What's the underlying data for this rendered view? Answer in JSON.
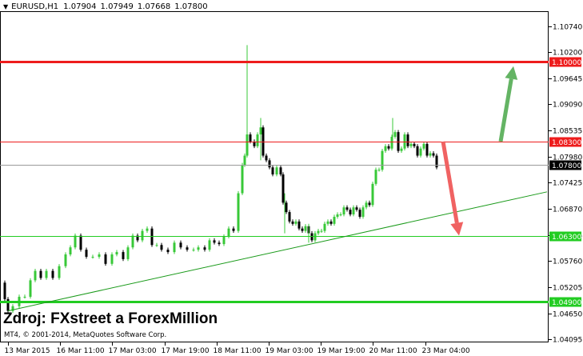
{
  "header": {
    "menu_arrow": "▼",
    "symbol": "EURUSD,H1",
    "quote": [
      "1.07904",
      "1.07949",
      "1.07668",
      "1.07800"
    ]
  },
  "watermark": {
    "source_text": "Zdroj: FXstreet a ForexMillion",
    "copyright": "MT4, © 2001-2014, MetaQuotes Software Corp."
  },
  "colors": {
    "background": "#ffffff",
    "grid": "#c8c8c8",
    "bull_candle": "#38c838",
    "bear_candle": "#000000",
    "red_line": "#ee1c1c",
    "green_line": "#22cc22",
    "trend_line": "#1a9a1a",
    "up_arrow": "#64b464",
    "down_arrow": "#f06262"
  },
  "chart_data": {
    "type": "candlestick",
    "ylim": [
      1.0403,
      1.1107
    ],
    "y_ticks": [
      "1.10740",
      "1.10200",
      "1.09645",
      "1.09090",
      "1.08535",
      "1.07980",
      "1.07425",
      "1.06870",
      "1.06315",
      "1.05760",
      "1.05205",
      "1.04650",
      "1.04095"
    ],
    "x_ticks": [
      "13 Mar 2015",
      "16 Mar 11:00",
      "17 Mar 03:00",
      "17 Mar 19:00",
      "18 Mar 11:00",
      "19 Mar 03:00",
      "19 Mar 19:00",
      "20 Mar 11:00",
      "23 Mar 04:00"
    ],
    "price_path": [
      [
        0,
        1.053,
        1.0495
      ],
      [
        4,
        1.047,
        1.045
      ],
      [
        10,
        1.048,
        1.047
      ],
      [
        18,
        1.0512,
        1.05
      ],
      [
        25,
        1.05,
        1.0485
      ],
      [
        32,
        1.0535,
        1.052
      ],
      [
        38,
        1.0575,
        1.0555
      ],
      [
        45,
        1.054,
        1.053
      ],
      [
        52,
        1.0555,
        1.0545
      ],
      [
        60,
        1.055,
        1.054
      ],
      [
        68,
        1.0565,
        1.0555
      ],
      [
        76,
        1.059,
        1.0575
      ],
      [
        82,
        1.0625,
        1.0605
      ],
      [
        88,
        1.063,
        1.061
      ],
      [
        95,
        1.06,
        1.059
      ],
      [
        102,
        1.0595,
        1.0585
      ],
      [
        110,
        1.0585,
        1.0578
      ],
      [
        118,
        1.059,
        1.058
      ],
      [
        126,
        1.0575,
        1.057
      ],
      [
        134,
        1.059,
        1.0575
      ],
      [
        140,
        1.0595,
        1.0585
      ],
      [
        148,
        1.0585,
        1.058
      ],
      [
        154,
        1.0605,
        1.0585
      ],
      [
        160,
        1.063,
        1.0615
      ],
      [
        166,
        1.0635,
        1.062
      ],
      [
        172,
        1.064,
        1.0625
      ],
      [
        178,
        1.0645,
        1.063
      ],
      [
        184,
        1.062,
        1.061
      ],
      [
        190,
        1.061,
        1.0605
      ],
      [
        196,
        1.06,
        1.06
      ],
      [
        204,
        1.06,
        1.0595
      ],
      [
        212,
        1.0615,
        1.06
      ],
      [
        220,
        1.0605,
        1.06
      ],
      [
        228,
        1.061,
        1.06
      ],
      [
        236,
        1.06,
        1.0595
      ],
      [
        242,
        1.0605,
        1.059
      ],
      [
        250,
        1.061,
        1.06
      ],
      [
        256,
        1.062,
        1.061
      ],
      [
        262,
        1.0615,
        1.0605
      ],
      [
        268,
        1.0622,
        1.0612
      ],
      [
        274,
        1.0628,
        1.0618
      ],
      [
        280,
        1.0645,
        1.0625
      ],
      [
        286,
        1.0665,
        1.064
      ],
      [
        292,
        1.072,
        1.068
      ],
      [
        297,
        1.078,
        1.074
      ],
      [
        300,
        1.082,
        1.08
      ],
      [
        303,
        1.0845,
        1.081
      ],
      [
        307,
        1.083,
        1.081
      ],
      [
        312,
        1.083,
        1.082
      ],
      [
        316,
        1.0845,
        1.0815
      ],
      [
        320,
        1.086,
        1.084
      ],
      [
        323,
        1.081,
        1.08
      ],
      [
        327,
        1.079,
        1.078
      ],
      [
        331,
        1.0775,
        1.076
      ],
      [
        335,
        1.077,
        1.076
      ],
      [
        340,
        1.0775,
        1.0765
      ],
      [
        345,
        1.076,
        1.074
      ],
      [
        348,
        1.0725,
        1.07
      ],
      [
        352,
        1.068,
        1.066
      ],
      [
        356,
        1.066,
        1.065
      ],
      [
        360,
        1.0665,
        1.0655
      ],
      [
        364,
        1.066,
        1.065
      ],
      [
        368,
        1.0645,
        1.064
      ],
      [
        372,
        1.0645,
        1.064
      ],
      [
        376,
        1.065,
        1.064
      ],
      [
        380,
        1.0635,
        1.0625
      ],
      [
        384,
        1.0625,
        1.062
      ],
      [
        388,
        1.0635,
        1.0625
      ],
      [
        392,
        1.064,
        1.0635
      ],
      [
        396,
        1.065,
        1.064
      ],
      [
        400,
        1.0655,
        1.0645
      ],
      [
        404,
        1.066,
        1.065
      ],
      [
        408,
        1.0665,
        1.0655
      ],
      [
        412,
        1.067,
        1.066
      ],
      [
        416,
        1.0675,
        1.0665
      ],
      [
        420,
        1.0685,
        1.0675
      ],
      [
        424,
        1.069,
        1.068
      ],
      [
        428,
        1.0685,
        1.0678
      ],
      [
        432,
        1.0685,
        1.0675
      ],
      [
        436,
        1.069,
        1.068
      ],
      [
        440,
        1.0685,
        1.0675
      ],
      [
        444,
        1.068,
        1.067
      ],
      [
        448,
        1.069,
        1.0675
      ],
      [
        452,
        1.07,
        1.0685
      ],
      [
        456,
        1.071,
        1.0695
      ],
      [
        460,
        1.074,
        1.071
      ],
      [
        464,
        1.077,
        1.074
      ],
      [
        468,
        1.08,
        1.077
      ],
      [
        472,
        1.081,
        1.0795
      ],
      [
        476,
        1.082,
        1.0805
      ],
      [
        480,
        1.083,
        1.0815
      ],
      [
        484,
        1.084,
        1.082
      ],
      [
        488,
        1.085,
        1.0825
      ],
      [
        492,
        1.0825,
        1.081
      ],
      [
        496,
        1.0815,
        1.0805
      ],
      [
        500,
        1.0845,
        1.0825
      ],
      [
        504,
        1.0835,
        1.082
      ],
      [
        508,
        1.0825,
        1.081
      ],
      [
        512,
        1.082,
        1.081
      ],
      [
        516,
        1.081,
        1.08
      ],
      [
        520,
        1.0815,
        1.0805
      ],
      [
        524,
        1.0825,
        1.081
      ],
      [
        528,
        1.081,
        1.08
      ],
      [
        532,
        1.0805,
        1.0795
      ],
      [
        536,
        1.08,
        1.079
      ],
      [
        540,
        1.079,
        1.0775
      ]
    ],
    "spikes": [
      [
        303,
        1.1035,
        1.082
      ],
      [
        320,
        1.088,
        1.079
      ],
      [
        350,
        1.072,
        1.0635
      ],
      [
        485,
        1.088,
        1.083
      ],
      [
        380,
        1.0655,
        1.0615
      ]
    ],
    "horizontal_levels": [
      {
        "value": 1.1,
        "label": "1.10000",
        "kind": "red",
        "thick": true
      },
      {
        "value": 1.083,
        "label": "1.08300",
        "kind": "red",
        "thick": false
      },
      {
        "value": 1.078,
        "label": "1.07800",
        "kind": "current",
        "thick": false
      },
      {
        "value": 1.063,
        "label": "1.06300",
        "kind": "green",
        "thick": false
      },
      {
        "value": 1.049,
        "label": "1.04900",
        "kind": "green",
        "thick": true
      }
    ],
    "trend_line": {
      "from": [
        10,
        1.047
      ],
      "to": [
        684,
        1.0723
      ]
    },
    "arrows": [
      {
        "kind": "up",
        "from": [
          626,
          1.083
        ],
        "to": [
          642,
          1.099
        ]
      },
      {
        "kind": "down",
        "from": [
          554,
          1.083
        ],
        "to": [
          574,
          1.063
        ]
      }
    ]
  }
}
